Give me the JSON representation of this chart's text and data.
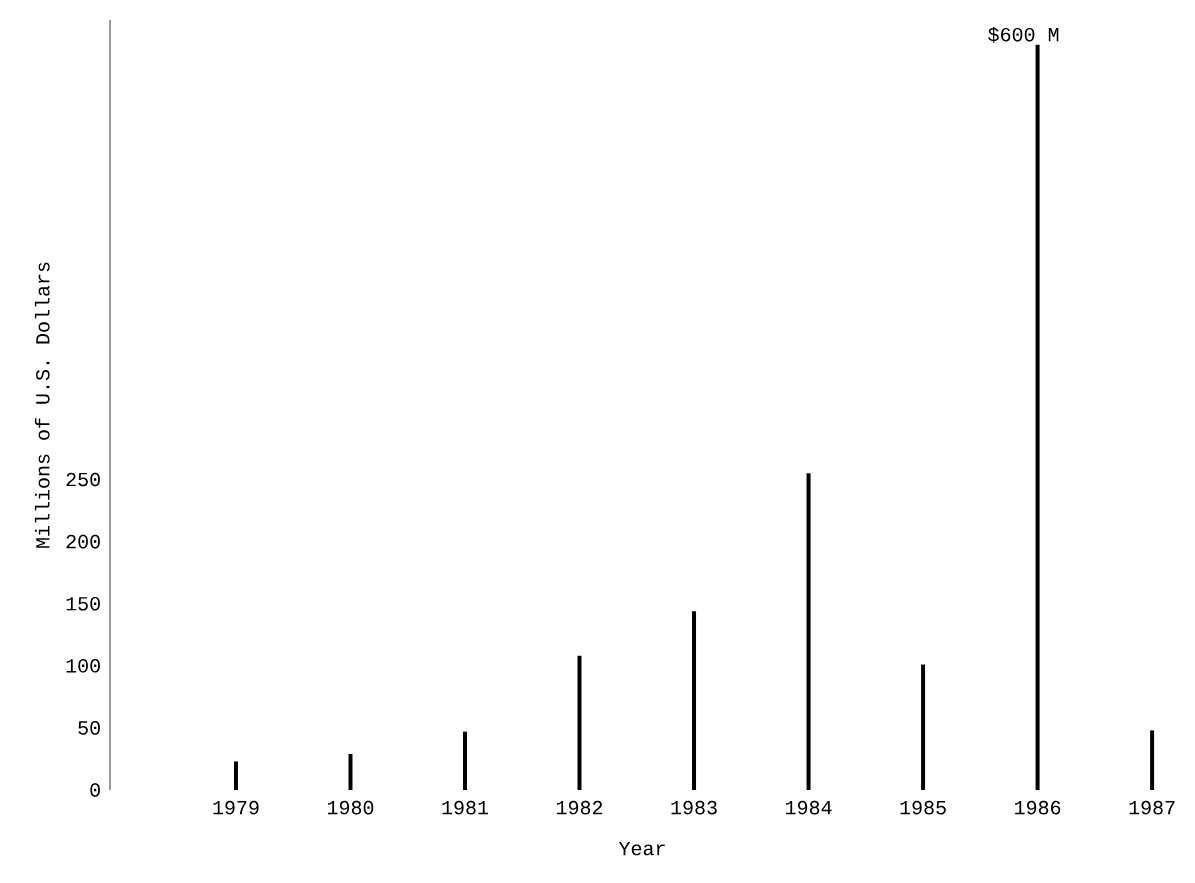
{
  "chart_data": {
    "type": "bar",
    "xlabel": "Year",
    "ylabel": "Millions of U.S. Dollars",
    "categories": [
      "1979",
      "1980",
      "1981",
      "1982",
      "1983",
      "1984",
      "1985",
      "1986",
      "1987"
    ],
    "values": [
      23,
      29,
      47,
      108,
      144,
      255,
      101,
      600,
      48
    ],
    "value_labels": [
      null,
      null,
      null,
      null,
      null,
      null,
      null,
      "$600 M",
      null
    ],
    "color": "#000000",
    "ylim": [
      0,
      620
    ],
    "yticks": [
      0,
      50,
      100,
      150,
      200,
      250
    ]
  }
}
